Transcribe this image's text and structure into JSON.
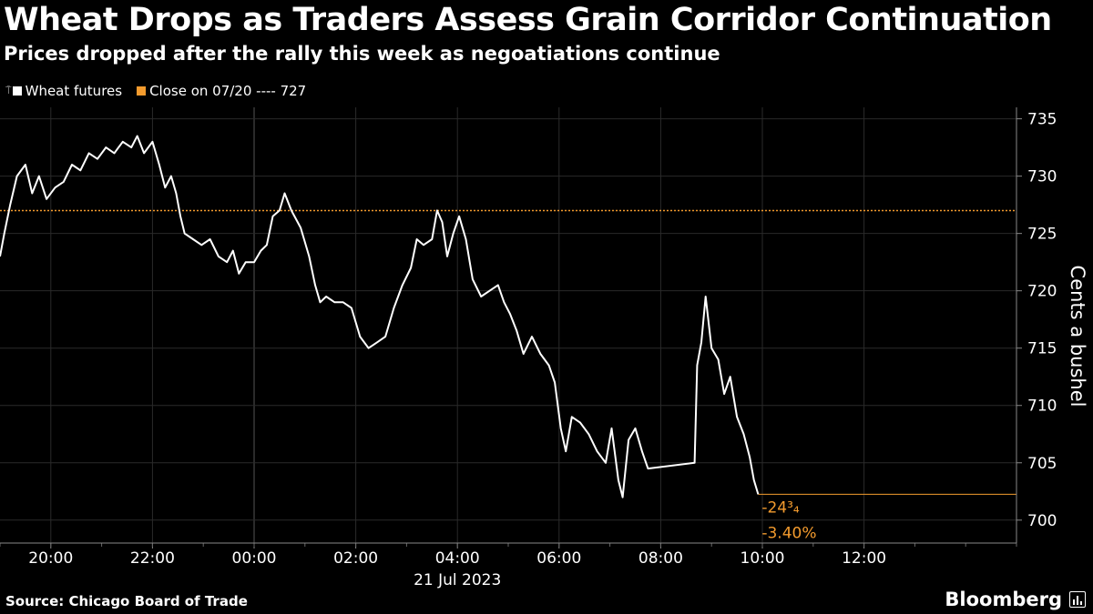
{
  "title": "Wheat Drops as Traders Assess Grain Corridor Continuation",
  "subtitle": "Prices dropped after the rally this week as negoatiations continue",
  "legend": {
    "series_label": "Wheat futures",
    "series_color": "#ffffff",
    "reference_label": "Close on 07/20 ---- 727",
    "reference_color": "#f39b2e"
  },
  "footer": {
    "source": "Source: Chicago Board of Trade",
    "brand": "Bloomberg",
    "brand_icon": "bloomberg-terminal-icon"
  },
  "chart_data": {
    "type": "line",
    "ylabel": "Cents a bushel",
    "ylim": [
      698,
      736
    ],
    "yticks": [
      700,
      705,
      710,
      715,
      720,
      725,
      730,
      735
    ],
    "xlim": [
      "2023-07-20T19:00",
      "2023-07-21T15:00"
    ],
    "xticks": [
      {
        "t": "2023-07-20T20:00",
        "label": "20:00"
      },
      {
        "t": "2023-07-20T22:00",
        "label": "22:00"
      },
      {
        "t": "2023-07-21T00:00",
        "label": "00:00"
      },
      {
        "t": "2023-07-21T02:00",
        "label": "02:00"
      },
      {
        "t": "2023-07-21T04:00",
        "label": "04:00"
      },
      {
        "t": "2023-07-21T06:00",
        "label": "06:00"
      },
      {
        "t": "2023-07-21T08:00",
        "label": "08:00"
      },
      {
        "t": "2023-07-21T10:00",
        "label": "10:00"
      },
      {
        "t": "2023-07-21T12:00",
        "label": "12:00"
      }
    ],
    "date_label": "21 Jul 2023",
    "reference_line": {
      "name": "Close on 07/20",
      "value": 727
    },
    "last_value": 702.25,
    "annotations": {
      "change": "-24³₄",
      "change_pct": "-3.40%"
    },
    "series": [
      {
        "name": "Wheat futures",
        "points": [
          [
            "2023-07-20T19:00",
            723.0
          ],
          [
            "2023-07-20T19:05",
            725.0
          ],
          [
            "2023-07-20T19:12",
            727.5
          ],
          [
            "2023-07-20T19:20",
            730.0
          ],
          [
            "2023-07-20T19:30",
            731.0
          ],
          [
            "2023-07-20T19:38",
            728.5
          ],
          [
            "2023-07-20T19:46",
            730.0
          ],
          [
            "2023-07-20T19:55",
            728.0
          ],
          [
            "2023-07-20T20:05",
            729.0
          ],
          [
            "2023-07-20T20:15",
            729.5
          ],
          [
            "2023-07-20T20:25",
            731.0
          ],
          [
            "2023-07-20T20:35",
            730.5
          ],
          [
            "2023-07-20T20:45",
            732.0
          ],
          [
            "2023-07-20T20:55",
            731.5
          ],
          [
            "2023-07-20T21:05",
            732.5
          ],
          [
            "2023-07-20T21:15",
            732.0
          ],
          [
            "2023-07-20T21:25",
            733.0
          ],
          [
            "2023-07-20T21:35",
            732.5
          ],
          [
            "2023-07-20T21:42",
            733.5
          ],
          [
            "2023-07-20T21:50",
            732.0
          ],
          [
            "2023-07-20T22:00",
            733.0
          ],
          [
            "2023-07-20T22:08",
            731.0
          ],
          [
            "2023-07-20T22:15",
            729.0
          ],
          [
            "2023-07-20T22:22",
            730.0
          ],
          [
            "2023-07-20T22:28",
            728.5
          ],
          [
            "2023-07-20T22:33",
            726.5
          ],
          [
            "2023-07-20T22:38",
            725.0
          ],
          [
            "2023-07-20T22:48",
            724.5
          ],
          [
            "2023-07-20T22:58",
            724.0
          ],
          [
            "2023-07-20T23:08",
            724.5
          ],
          [
            "2023-07-20T23:18",
            723.0
          ],
          [
            "2023-07-20T23:28",
            722.5
          ],
          [
            "2023-07-20T23:35",
            723.5
          ],
          [
            "2023-07-20T23:42",
            721.5
          ],
          [
            "2023-07-20T23:50",
            722.5
          ],
          [
            "2023-07-21T00:00",
            722.5
          ],
          [
            "2023-07-21T00:08",
            723.5
          ],
          [
            "2023-07-21T00:15",
            724.0
          ],
          [
            "2023-07-21T00:22",
            726.5
          ],
          [
            "2023-07-21T00:30",
            727.0
          ],
          [
            "2023-07-21T00:36",
            728.5
          ],
          [
            "2023-07-21T00:44",
            727.0
          ],
          [
            "2023-07-21T00:55",
            725.5
          ],
          [
            "2023-07-21T01:05",
            723.0
          ],
          [
            "2023-07-21T01:12",
            720.5
          ],
          [
            "2023-07-21T01:18",
            719.0
          ],
          [
            "2023-07-21T01:25",
            719.5
          ],
          [
            "2023-07-21T01:35",
            719.0
          ],
          [
            "2023-07-21T01:45",
            719.0
          ],
          [
            "2023-07-21T01:55",
            718.5
          ],
          [
            "2023-07-21T02:05",
            716.0
          ],
          [
            "2023-07-21T02:15",
            715.0
          ],
          [
            "2023-07-21T02:25",
            715.5
          ],
          [
            "2023-07-21T02:35",
            716.0
          ],
          [
            "2023-07-21T02:45",
            718.5
          ],
          [
            "2023-07-21T02:55",
            720.5
          ],
          [
            "2023-07-21T03:05",
            722.0
          ],
          [
            "2023-07-21T03:12",
            724.5
          ],
          [
            "2023-07-21T03:20",
            724.0
          ],
          [
            "2023-07-21T03:30",
            724.5
          ],
          [
            "2023-07-21T03:36",
            727.0
          ],
          [
            "2023-07-21T03:42",
            726.0
          ],
          [
            "2023-07-21T03:48",
            723.0
          ],
          [
            "2023-07-21T03:55",
            725.0
          ],
          [
            "2023-07-21T04:02",
            726.5
          ],
          [
            "2023-07-21T04:10",
            724.5
          ],
          [
            "2023-07-21T04:18",
            721.0
          ],
          [
            "2023-07-21T04:28",
            719.5
          ],
          [
            "2023-07-21T04:38",
            720.0
          ],
          [
            "2023-07-21T04:48",
            720.5
          ],
          [
            "2023-07-21T04:55",
            719.0
          ],
          [
            "2023-07-21T05:02",
            718.0
          ],
          [
            "2023-07-21T05:10",
            716.5
          ],
          [
            "2023-07-21T05:18",
            714.5
          ],
          [
            "2023-07-21T05:28",
            716.0
          ],
          [
            "2023-07-21T05:38",
            714.5
          ],
          [
            "2023-07-21T05:48",
            713.5
          ],
          [
            "2023-07-21T05:55",
            712.0
          ],
          [
            "2023-07-21T06:02",
            708.0
          ],
          [
            "2023-07-21T06:08",
            706.0
          ],
          [
            "2023-07-21T06:15",
            709.0
          ],
          [
            "2023-07-21T06:25",
            708.5
          ],
          [
            "2023-07-21T06:35",
            707.5
          ],
          [
            "2023-07-21T06:45",
            706.0
          ],
          [
            "2023-07-21T06:55",
            705.0
          ],
          [
            "2023-07-21T07:02",
            708.0
          ],
          [
            "2023-07-21T07:10",
            703.5
          ],
          [
            "2023-07-21T07:15",
            702.0
          ],
          [
            "2023-07-21T07:22",
            707.0
          ],
          [
            "2023-07-21T07:30",
            708.0
          ],
          [
            "2023-07-21T07:38",
            706.0
          ],
          [
            "2023-07-21T07:45",
            704.5
          ],
          [
            "2023-07-21T08:40",
            705.0
          ],
          [
            "2023-07-21T08:43",
            713.5
          ],
          [
            "2023-07-21T08:48",
            715.5
          ],
          [
            "2023-07-21T08:53",
            719.5
          ],
          [
            "2023-07-21T09:00",
            715.0
          ],
          [
            "2023-07-21T09:08",
            714.0
          ],
          [
            "2023-07-21T09:15",
            711.0
          ],
          [
            "2023-07-21T09:22",
            712.5
          ],
          [
            "2023-07-21T09:30",
            709.0
          ],
          [
            "2023-07-21T09:38",
            707.5
          ],
          [
            "2023-07-21T09:45",
            705.5
          ],
          [
            "2023-07-21T09:50",
            703.5
          ],
          [
            "2023-07-21T09:55",
            702.25
          ]
        ]
      }
    ]
  }
}
